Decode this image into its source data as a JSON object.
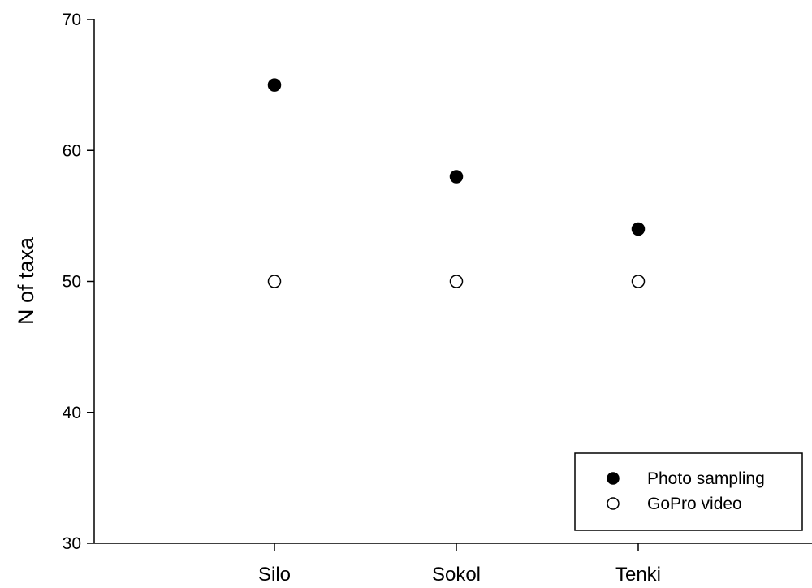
{
  "chart_data": {
    "type": "scatter",
    "title": "",
    "xlabel": "",
    "ylabel": "N of taxa",
    "categories": [
      "Silo",
      "Sokol",
      "Tenki"
    ],
    "ylim": [
      30,
      70
    ],
    "yticks": [
      30,
      40,
      50,
      60,
      70
    ],
    "grid": false,
    "legend_position": "bottom-right",
    "series": [
      {
        "name": "Photo sampling",
        "values": [
          65,
          58,
          54
        ],
        "marker": "filled-circle",
        "color": "#000000"
      },
      {
        "name": "GoPro video",
        "values": [
          50,
          50,
          50
        ],
        "marker": "open-circle",
        "color": "#000000"
      }
    ]
  }
}
